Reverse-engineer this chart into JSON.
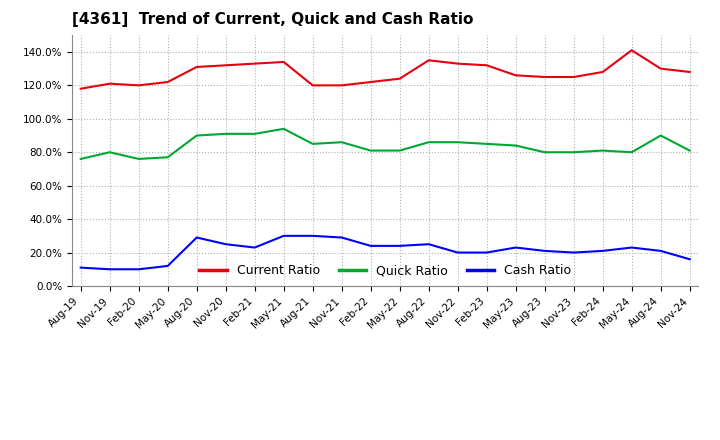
{
  "title": "[4361]  Trend of Current, Quick and Cash Ratio",
  "x_labels": [
    "Aug-19",
    "Nov-19",
    "Feb-20",
    "May-20",
    "Aug-20",
    "Nov-20",
    "Feb-21",
    "May-21",
    "Aug-21",
    "Nov-21",
    "Feb-22",
    "May-22",
    "Aug-22",
    "Nov-22",
    "Feb-23",
    "May-23",
    "Aug-23",
    "Nov-23",
    "Feb-24",
    "May-24",
    "Aug-24",
    "Nov-24"
  ],
  "current_ratio": [
    118,
    121,
    120,
    122,
    131,
    132,
    133,
    134,
    120,
    120,
    122,
    124,
    135,
    133,
    132,
    126,
    125,
    125,
    128,
    141,
    130,
    128
  ],
  "quick_ratio": [
    76,
    80,
    76,
    77,
    90,
    91,
    91,
    94,
    85,
    86,
    81,
    81,
    86,
    86,
    85,
    84,
    80,
    80,
    81,
    80,
    90,
    81
  ],
  "cash_ratio": [
    11,
    10,
    10,
    12,
    29,
    25,
    23,
    30,
    30,
    29,
    24,
    24,
    25,
    20,
    20,
    23,
    21,
    20,
    21,
    23,
    21,
    16
  ],
  "current_color": "#e8000d",
  "quick_color": "#00a832",
  "cash_color": "#0000ff",
  "bg_color": "#ffffff",
  "plot_bg_color": "#ffffff",
  "grid_color": "#b0b0b0",
  "ylim": [
    0,
    150
  ],
  "yticks": [
    0,
    20,
    40,
    60,
    80,
    100,
    120,
    140
  ],
  "legend_labels": [
    "Current Ratio",
    "Quick Ratio",
    "Cash Ratio"
  ],
  "title_fontsize": 11,
  "tick_fontsize": 7.5,
  "legend_fontsize": 9,
  "line_width": 1.5
}
